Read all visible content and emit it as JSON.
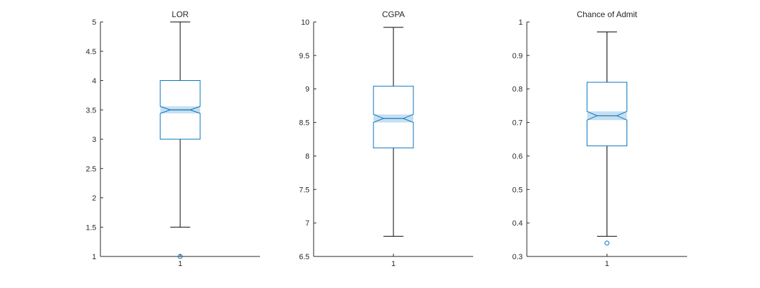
{
  "chart_data": [
    {
      "type": "boxplot",
      "title": "LOR",
      "categories": [
        "1"
      ],
      "ylim": [
        1,
        5
      ],
      "yticks": [
        1,
        1.5,
        2,
        2.5,
        3,
        3.5,
        4,
        4.5,
        5
      ],
      "ytick_labels": [
        "1",
        "1.5",
        "2",
        "2.5",
        "3",
        "3.5",
        "4",
        "4.5",
        "5"
      ],
      "notch": true,
      "box": {
        "whisker_low": 1.5,
        "q1": 3.0,
        "median": 3.5,
        "q3": 4.0,
        "whisker_high": 5.0,
        "notch_low": 3.44,
        "notch_high": 3.56
      },
      "outliers": [
        1.0
      ]
    },
    {
      "type": "boxplot",
      "title": "CGPA",
      "categories": [
        "1"
      ],
      "ylim": [
        6.5,
        10
      ],
      "yticks": [
        6.5,
        7,
        7.5,
        8,
        8.5,
        9,
        9.5,
        10
      ],
      "ytick_labels": [
        "6.5",
        "7",
        "7.5",
        "8",
        "8.5",
        "9",
        "9.5",
        "10"
      ],
      "notch": true,
      "box": {
        "whisker_low": 6.8,
        "q1": 8.12,
        "median": 8.56,
        "q3": 9.04,
        "whisker_high": 9.92,
        "notch_low": 8.5,
        "notch_high": 8.62
      },
      "outliers": []
    },
    {
      "type": "boxplot",
      "title": "Chance of Admit",
      "categories": [
        "1"
      ],
      "ylim": [
        0.3,
        1
      ],
      "yticks": [
        0.3,
        0.4,
        0.5,
        0.6,
        0.7,
        0.8,
        0.9,
        1
      ],
      "ytick_labels": [
        "0.3",
        "0.4",
        "0.5",
        "0.6",
        "0.7",
        "0.8",
        "0.9",
        "1"
      ],
      "notch": true,
      "box": {
        "whisker_low": 0.36,
        "q1": 0.63,
        "median": 0.72,
        "q3": 0.82,
        "whisker_high": 0.97,
        "notch_low": 0.707,
        "notch_high": 0.733
      },
      "outliers": [
        0.34
      ]
    }
  ],
  "colors": {
    "box_edge": "#0072bd",
    "notch_fill": "#c6dff0",
    "whisker": "#000000",
    "axis": "#262626"
  }
}
